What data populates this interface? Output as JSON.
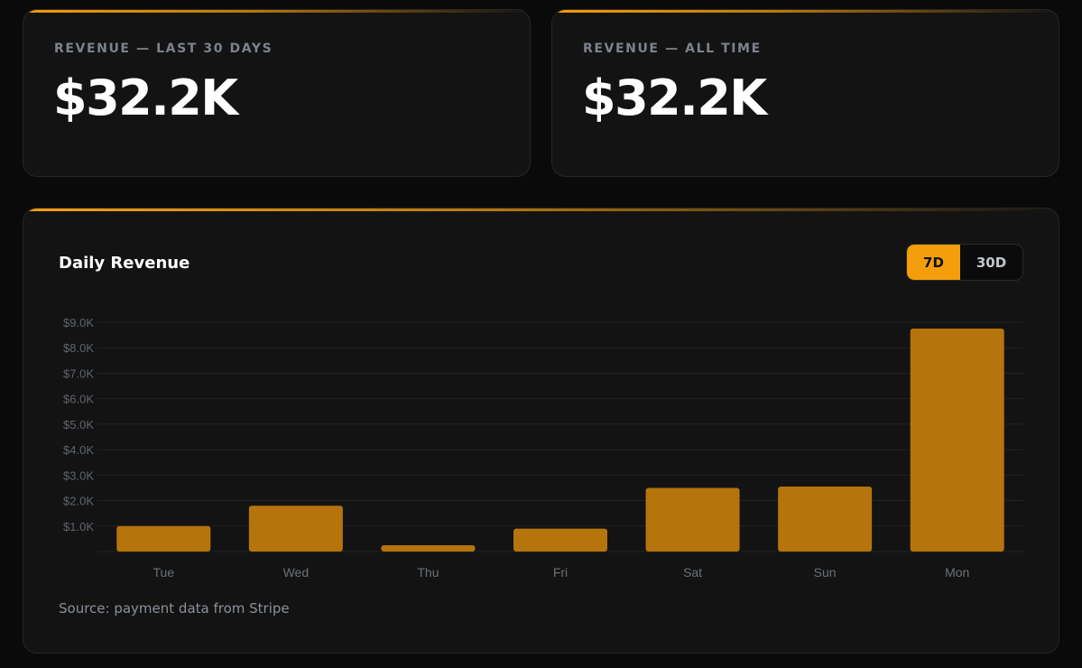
{
  "stats": [
    {
      "label": "REVENUE — LAST 30 DAYS",
      "value": "$32.2K"
    },
    {
      "label": "REVENUE — ALL TIME",
      "value": "$32.2K"
    }
  ],
  "chart": {
    "title": "Daily Revenue",
    "toggle": {
      "options": [
        "7D",
        "30D"
      ],
      "active": "7D"
    },
    "source": "Source: payment data from Stripe"
  },
  "colors": {
    "accent": "#f59e0b",
    "bar": "#b5740c",
    "background": "#0a0a0a",
    "card": "#131313"
  },
  "chart_data": {
    "type": "bar",
    "title": "Daily Revenue",
    "categories": [
      "Tue",
      "Wed",
      "Thu",
      "Fri",
      "Sat",
      "Sun",
      "Mon"
    ],
    "values": [
      1000,
      1800,
      250,
      900,
      2500,
      2550,
      8750
    ],
    "ylim": [
      0,
      9000
    ],
    "yticks": [
      1000,
      2000,
      3000,
      4000,
      5000,
      6000,
      7000,
      8000,
      9000
    ],
    "ytick_labels": [
      "$1.0K",
      "$2.0K",
      "$3.0K",
      "$4.0K",
      "$5.0K",
      "$6.0K",
      "$7.0K",
      "$8.0K",
      "$9.0K"
    ],
    "xlabel": "",
    "ylabel": "",
    "grid": true,
    "legend": "none"
  }
}
